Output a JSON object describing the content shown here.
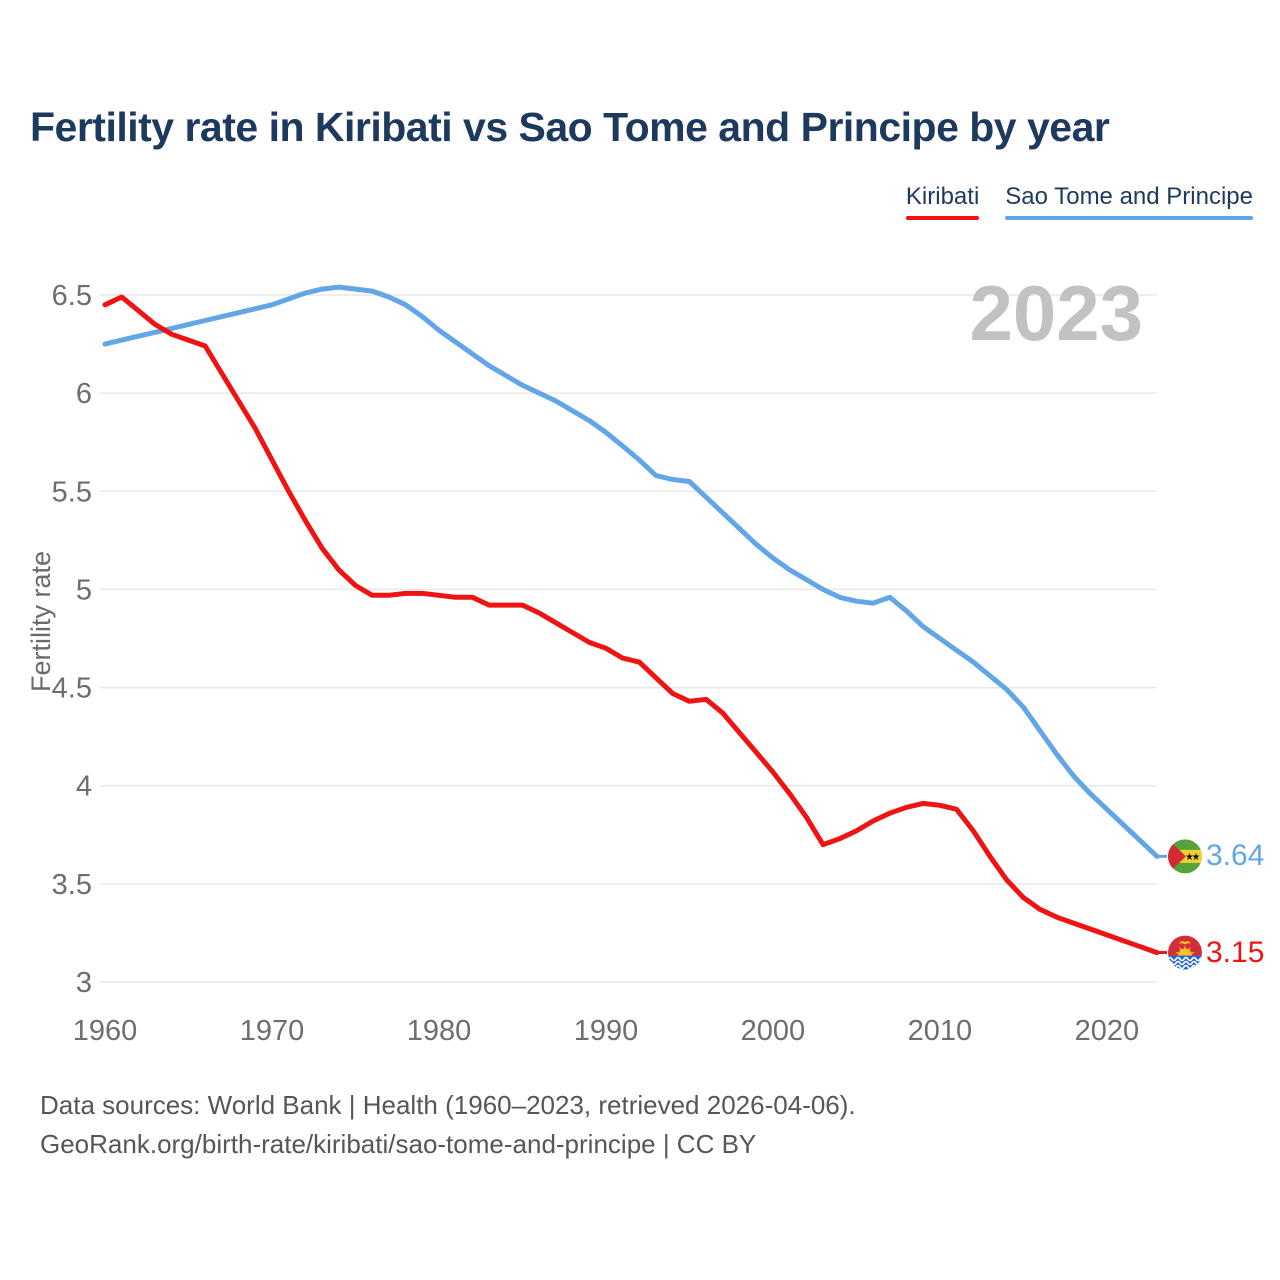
{
  "page": {
    "title": "Fertility rate in Kiribati vs Sao Tome and Principe by year",
    "watermark": "2023",
    "footer_line1": "Data sources: World Bank | Health (1960–2023, retrieved 2026-04-06).",
    "footer_line2": "GeoRank.org/birth-rate/kiribati/sao-tome-and-principe | CC BY"
  },
  "colors": {
    "title": "#1d3a5e",
    "kiribati_red": "#ee1414",
    "sao_tome_blue": "#62a6e8",
    "gridline": "#e9e9e9",
    "axis_text": "#6e6e6e",
    "watermark_gray": "#c2c2c2",
    "footer_gray": "#565656"
  },
  "chart_data": {
    "type": "line",
    "title": "Fertility rate in Kiribati vs Sao Tome and Principe by year",
    "xlabel": "",
    "ylabel": "Fertility rate",
    "ylim": [
      3,
      6.5
    ],
    "yticks": [
      6.5,
      6,
      5.5,
      5,
      4.5,
      4,
      3.5,
      3
    ],
    "xticks": [
      1960,
      1970,
      1980,
      1990,
      2000,
      2010,
      2020
    ],
    "grid": "horizontal",
    "legend_position": "top-right",
    "watermark": "2023",
    "x": [
      1960,
      1961,
      1962,
      1963,
      1964,
      1965,
      1966,
      1967,
      1968,
      1969,
      1970,
      1971,
      1972,
      1973,
      1974,
      1975,
      1976,
      1977,
      1978,
      1979,
      1980,
      1981,
      1982,
      1983,
      1984,
      1985,
      1986,
      1987,
      1988,
      1989,
      1990,
      1991,
      1992,
      1993,
      1994,
      1995,
      1996,
      1997,
      1998,
      1999,
      2000,
      2001,
      2002,
      2003,
      2004,
      2005,
      2006,
      2007,
      2008,
      2009,
      2010,
      2011,
      2012,
      2013,
      2014,
      2015,
      2016,
      2017,
      2018,
      2019,
      2020,
      2021,
      2022,
      2023
    ],
    "series": [
      {
        "name": "Kiribati",
        "color": "#ee1414",
        "end_label": "3.15",
        "end_value": 3.15,
        "flag": "kiribati",
        "values": [
          6.45,
          6.49,
          6.42,
          6.35,
          6.3,
          6.27,
          6.24,
          6.1,
          5.96,
          5.82,
          5.66,
          5.5,
          5.35,
          5.21,
          5.1,
          5.02,
          4.97,
          4.97,
          4.98,
          4.98,
          4.97,
          4.96,
          4.96,
          4.92,
          4.92,
          4.92,
          4.88,
          4.83,
          4.78,
          4.73,
          4.7,
          4.65,
          4.63,
          4.55,
          4.47,
          4.43,
          4.44,
          4.37,
          4.27,
          4.17,
          4.07,
          3.96,
          3.84,
          3.7,
          3.73,
          3.77,
          3.82,
          3.86,
          3.89,
          3.91,
          3.9,
          3.88,
          3.77,
          3.64,
          3.52,
          3.43,
          3.37,
          3.33,
          3.3,
          3.27,
          3.24,
          3.21,
          3.18,
          3.15
        ]
      },
      {
        "name": "Sao Tome and Principe",
        "color": "#62a6e8",
        "end_label": "3.64",
        "end_value": 3.64,
        "flag": "sao-tome-and-principe",
        "values": [
          6.25,
          6.27,
          6.29,
          6.31,
          6.33,
          6.35,
          6.37,
          6.39,
          6.41,
          6.43,
          6.45,
          6.48,
          6.51,
          6.53,
          6.54,
          6.53,
          6.52,
          6.49,
          6.45,
          6.39,
          6.32,
          6.26,
          6.2,
          6.14,
          6.09,
          6.04,
          6.0,
          5.96,
          5.91,
          5.86,
          5.8,
          5.73,
          5.66,
          5.58,
          5.56,
          5.55,
          5.47,
          5.39,
          5.31,
          5.23,
          5.16,
          5.1,
          5.05,
          5.0,
          4.96,
          4.94,
          4.93,
          4.96,
          4.89,
          4.81,
          4.75,
          4.69,
          4.63,
          4.56,
          4.49,
          4.4,
          4.28,
          4.16,
          4.05,
          3.96,
          3.88,
          3.8,
          3.72,
          3.64
        ]
      }
    ]
  }
}
